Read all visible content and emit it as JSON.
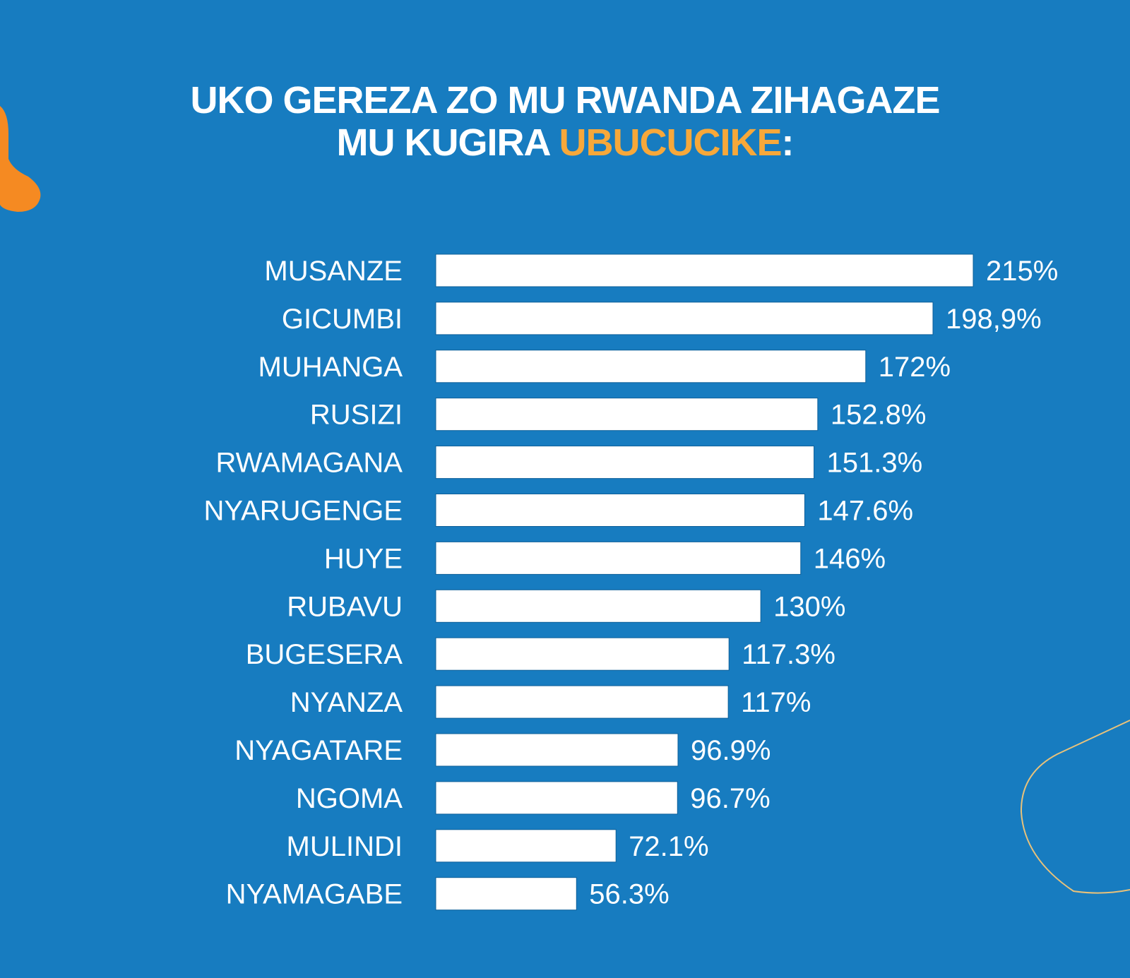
{
  "title": {
    "line1": "UKO GEREZA ZO MU RWANDA ZIHAGAZE",
    "line2_prefix": "MU KUGIRA ",
    "line2_highlight": "UBUCUCIKE",
    "line2_suffix": ":"
  },
  "colors": {
    "background": "#177cc0",
    "bar": "#ffffff",
    "highlight": "#f7a83a",
    "accent_shape": "#f58a22"
  },
  "chart_data": {
    "type": "bar",
    "orientation": "horizontal",
    "title": "UKO GEREZA ZO MU RWANDA ZIHAGAZE MU KUGIRA UBUCUCIKE:",
    "xlabel": "",
    "ylabel": "",
    "xlim": [
      0,
      215
    ],
    "categories": [
      "MUSANZE",
      "GICUMBI",
      "MUHANGA",
      "RUSIZI",
      "RWAMAGANA",
      "NYARUGENGE",
      "HUYE",
      "RUBAVU",
      "BUGESERA",
      "NYANZA",
      "NYAGATARE",
      "NGOMA",
      "MULINDI",
      "NYAMAGABE"
    ],
    "values": [
      215,
      198.9,
      172,
      152.8,
      151.3,
      147.6,
      146,
      130,
      117.3,
      117,
      96.9,
      96.7,
      72.1,
      56.3
    ],
    "value_labels": [
      "215%",
      "198,9%",
      "172%",
      "152.8%",
      "151.3%",
      "147.6%",
      "146%",
      "130%",
      "117.3%",
      "117%",
      "96.9%",
      "96.7%",
      "72.1%",
      "56.3%"
    ],
    "grid": false,
    "legend": "none"
  }
}
